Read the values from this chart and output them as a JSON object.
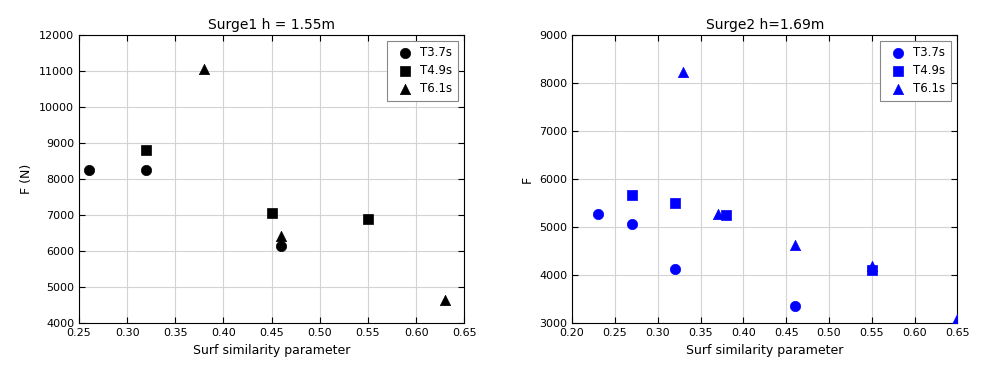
{
  "plot1": {
    "title": "Surge1 h = 1.55m",
    "xlabel": "Surf similarity parameter",
    "ylabel": "F (N)",
    "xlim": [
      0.25,
      0.65
    ],
    "ylim": [
      4000,
      12000
    ],
    "xticks": [
      0.25,
      0.3,
      0.35,
      0.4,
      0.45,
      0.5,
      0.55,
      0.6,
      0.65
    ],
    "yticks": [
      4000,
      5000,
      6000,
      7000,
      8000,
      9000,
      10000,
      11000,
      12000
    ],
    "color": "black",
    "series": {
      "T3.7s": {
        "marker": "o",
        "x": [
          0.26,
          0.32,
          0.46
        ],
        "y": [
          8250,
          8250,
          6150
        ]
      },
      "T4.9s": {
        "marker": "s",
        "x": [
          0.32,
          0.45,
          0.55
        ],
        "y": [
          8800,
          7050,
          6880
        ]
      },
      "T6.1s": {
        "marker": "^",
        "x": [
          0.38,
          0.46,
          0.63
        ],
        "y": [
          11050,
          6430,
          4650
        ]
      }
    }
  },
  "plot2": {
    "title": "Surge2 h=1.69m",
    "xlabel": "Surf similarity parameter",
    "ylabel": "F",
    "xlim": [
      0.2,
      0.65
    ],
    "ylim": [
      3000,
      9000
    ],
    "xticks": [
      0.2,
      0.25,
      0.3,
      0.35,
      0.4,
      0.45,
      0.5,
      0.55,
      0.6,
      0.65
    ],
    "yticks": [
      3000,
      4000,
      5000,
      6000,
      7000,
      8000,
      9000
    ],
    "color": "blue",
    "series": {
      "T3.7s": {
        "marker": "o",
        "x": [
          0.23,
          0.27,
          0.32,
          0.46
        ],
        "y": [
          5280,
          5060,
          4130,
          3360
        ]
      },
      "T4.9s": {
        "marker": "s",
        "x": [
          0.27,
          0.32,
          0.38,
          0.55
        ],
        "y": [
          5660,
          5500,
          5260,
          4100
        ]
      },
      "T6.1s": {
        "marker": "^",
        "x": [
          0.33,
          0.37,
          0.46,
          0.55,
          0.65
        ],
        "y": [
          8230,
          5270,
          4630,
          4200,
          3100
        ]
      }
    }
  },
  "fig_bg": "#ffffff",
  "ax_bg": "#ffffff",
  "grid_color": "#d3d3d3",
  "figsize": [
    9.87,
    3.85
  ],
  "dpi": 100
}
